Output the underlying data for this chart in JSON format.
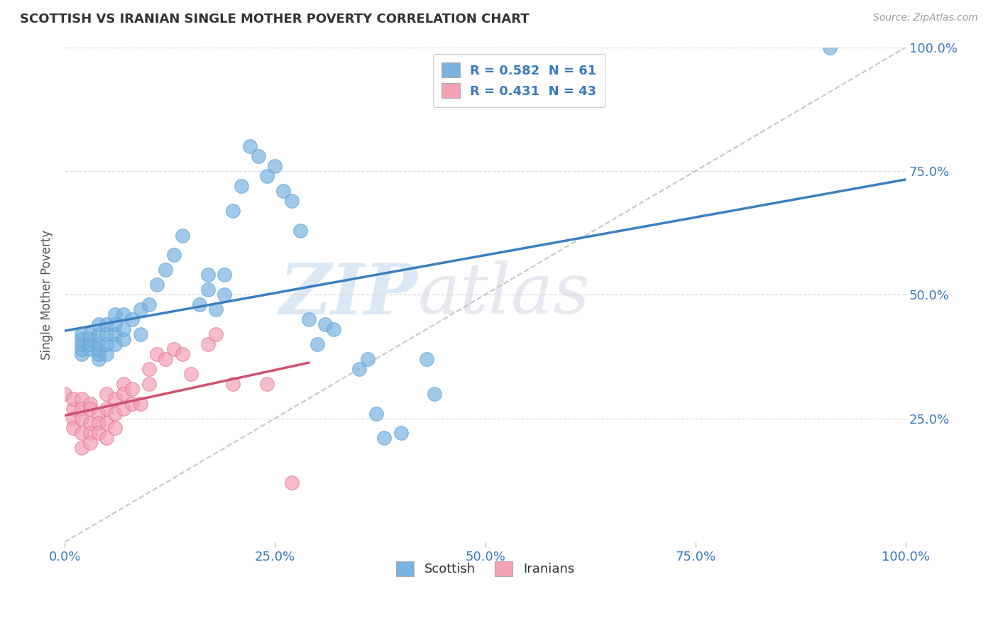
{
  "title": "SCOTTISH VS IRANIAN SINGLE MOTHER POVERTY CORRELATION CHART",
  "source": "Source: ZipAtlas.com",
  "ylabel": "Single Mother Poverty",
  "xlim": [
    0,
    1
  ],
  "ylim": [
    0,
    1
  ],
  "xticks": [
    0,
    0.25,
    0.5,
    0.75,
    1.0
  ],
  "yticks": [
    0.25,
    0.5,
    0.75,
    1.0
  ],
  "xticklabels": [
    "0.0%",
    "25.0%",
    "50.0%",
    "75.0%",
    "100.0%"
  ],
  "yticklabels": [
    "25.0%",
    "50.0%",
    "75.0%",
    "100.0%"
  ],
  "scottish_color": "#7ab3e0",
  "scottish_edge": "#5a9fd4",
  "iranian_color": "#f4a0b5",
  "iranian_edge": "#e07090",
  "line_scottish_color": "#3a7fc1",
  "line_iranian_color": "#d05070",
  "diag_color": "#c8c8c8",
  "grid_color": "#d8d8d8",
  "scottish_R": 0.582,
  "scottish_N": 61,
  "iranian_R": 0.431,
  "iranian_N": 43,
  "legend_label_1": "Scottish",
  "legend_label_2": "Iranians",
  "watermark_zip": "ZIP",
  "watermark_atlas": "atlas",
  "title_color": "#333333",
  "tick_color": "#3a7abf",
  "ylabel_color": "#555555",
  "scatter_scottish_x": [
    0.02,
    0.02,
    0.02,
    0.02,
    0.02,
    0.03,
    0.03,
    0.03,
    0.03,
    0.04,
    0.04,
    0.04,
    0.04,
    0.04,
    0.04,
    0.05,
    0.05,
    0.05,
    0.05,
    0.06,
    0.06,
    0.06,
    0.06,
    0.07,
    0.07,
    0.07,
    0.08,
    0.09,
    0.09,
    0.1,
    0.11,
    0.12,
    0.13,
    0.14,
    0.16,
    0.17,
    0.17,
    0.18,
    0.19,
    0.19,
    0.2,
    0.21,
    0.22,
    0.23,
    0.24,
    0.25,
    0.26,
    0.27,
    0.28,
    0.29,
    0.3,
    0.31,
    0.32,
    0.35,
    0.36,
    0.37,
    0.38,
    0.4,
    0.43,
    0.44,
    0.91
  ],
  "scatter_scottish_y": [
    0.38,
    0.39,
    0.4,
    0.41,
    0.42,
    0.39,
    0.4,
    0.41,
    0.42,
    0.37,
    0.38,
    0.39,
    0.4,
    0.42,
    0.44,
    0.38,
    0.4,
    0.42,
    0.44,
    0.4,
    0.42,
    0.44,
    0.46,
    0.41,
    0.43,
    0.46,
    0.45,
    0.42,
    0.47,
    0.48,
    0.52,
    0.55,
    0.58,
    0.62,
    0.48,
    0.51,
    0.54,
    0.47,
    0.5,
    0.54,
    0.67,
    0.72,
    0.8,
    0.78,
    0.74,
    0.76,
    0.71,
    0.69,
    0.63,
    0.45,
    0.4,
    0.44,
    0.43,
    0.35,
    0.37,
    0.26,
    0.21,
    0.22,
    0.37,
    0.3,
    1.0
  ],
  "scatter_iranian_x": [
    0.0,
    0.01,
    0.01,
    0.01,
    0.01,
    0.02,
    0.02,
    0.02,
    0.02,
    0.02,
    0.03,
    0.03,
    0.03,
    0.03,
    0.03,
    0.04,
    0.04,
    0.04,
    0.05,
    0.05,
    0.05,
    0.05,
    0.06,
    0.06,
    0.06,
    0.07,
    0.07,
    0.07,
    0.08,
    0.08,
    0.09,
    0.1,
    0.1,
    0.11,
    0.12,
    0.13,
    0.14,
    0.15,
    0.17,
    0.18,
    0.2,
    0.24,
    0.27
  ],
  "scatter_iranian_y": [
    0.3,
    0.27,
    0.29,
    0.25,
    0.23,
    0.29,
    0.27,
    0.25,
    0.22,
    0.19,
    0.28,
    0.27,
    0.24,
    0.22,
    0.2,
    0.26,
    0.24,
    0.22,
    0.3,
    0.27,
    0.24,
    0.21,
    0.29,
    0.26,
    0.23,
    0.32,
    0.3,
    0.27,
    0.31,
    0.28,
    0.28,
    0.35,
    0.32,
    0.38,
    0.37,
    0.39,
    0.38,
    0.34,
    0.4,
    0.42,
    0.32,
    0.32,
    0.12
  ]
}
